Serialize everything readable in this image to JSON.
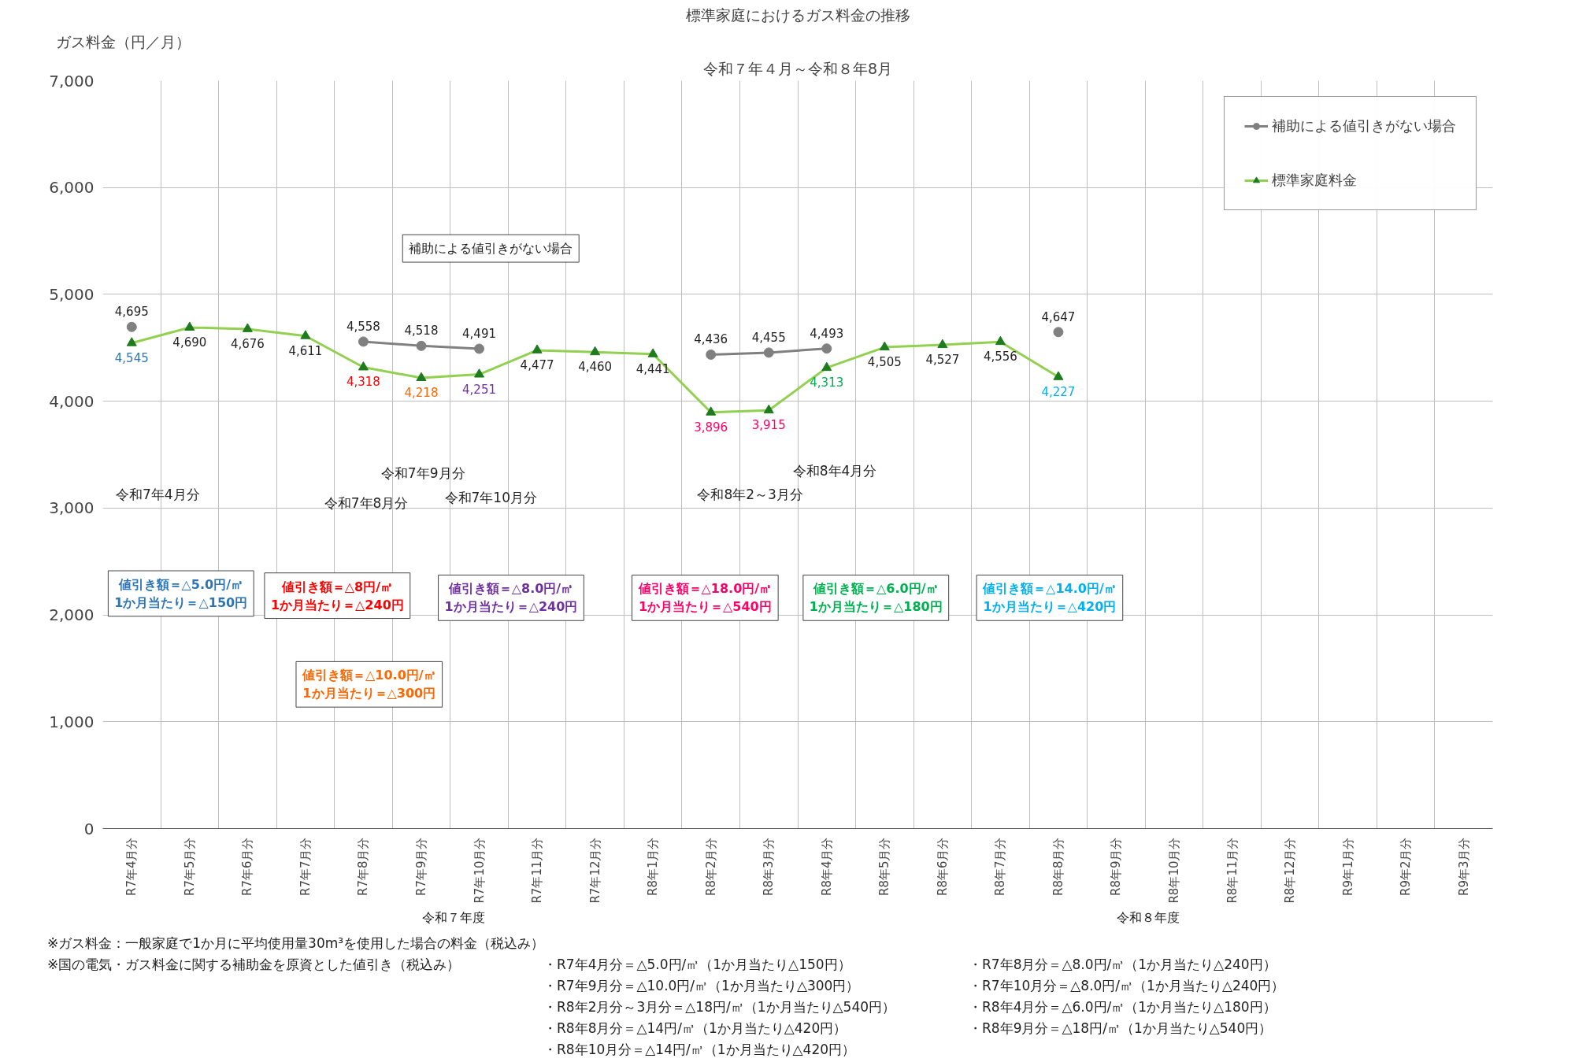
{
  "chart_data": {
    "type": "line",
    "title": "標準家庭におけるガス料金の推移",
    "subtitle": "令和７年４月～令和８年8月",
    "ylabel": "ガス料金（円／月）",
    "categories": [
      "R7年4月分",
      "R7年5月分",
      "R7年6月分",
      "R7年7月分",
      "R7年8月分",
      "R7年9月分",
      "R7年10月分",
      "R7年11月分",
      "R7年12月分",
      "R8年1月分",
      "R8年2月分",
      "R8年3月分",
      "R8年4月分",
      "R8年5月分",
      "R8年6月分",
      "R8年7月分",
      "R8年8月分",
      "R8年9月分",
      "R8年10月分",
      "R8年11月分",
      "R8年12月分",
      "R9年1月分",
      "R9年2月分",
      "R9年3月分"
    ],
    "series": [
      {
        "name": "補助による値引きがない場合",
        "color": "#808080",
        "marker": "circle",
        "values": [
          4695,
          null,
          null,
          null,
          4558,
          4518,
          4491,
          null,
          null,
          null,
          4436,
          4455,
          4493,
          null,
          null,
          null,
          4647,
          null,
          null,
          null,
          null,
          null,
          null,
          null
        ],
        "value_labels": [
          "4,695",
          null,
          null,
          null,
          "4,558",
          "4,518",
          "4,491",
          null,
          null,
          null,
          "4,436",
          "4,455",
          "4,493",
          null,
          null,
          null,
          "4,647",
          null,
          null,
          null,
          null,
          null,
          null,
          null
        ]
      },
      {
        "name": "標準家庭料金",
        "color": "#92d050",
        "marker": "triangle",
        "values": [
          4545,
          4690,
          4676,
          4611,
          4318,
          4218,
          4251,
          4477,
          4460,
          4441,
          3896,
          3915,
          4313,
          4505,
          4527,
          4556,
          4227,
          null,
          null,
          null,
          null,
          null,
          null,
          null
        ],
        "value_labels": [
          "4,545",
          "4,690",
          "4,676",
          "4,611",
          "4,318",
          "4,218",
          "4,251",
          "4,477",
          "4,460",
          "4,441",
          "3,896",
          "3,915",
          "4,313",
          "4,505",
          "4,527",
          "4,556",
          "4,227",
          null,
          null,
          null,
          null,
          null,
          null,
          null
        ]
      }
    ],
    "ylim": [
      0,
      7000
    ],
    "yticks": [
      0,
      {
        "value": 1000,
        "label": "1,000"
      },
      {
        "value": 2000,
        "label": "2,000"
      },
      {
        "value": 3000,
        "label": "3,000"
      },
      {
        "value": 4000,
        "label": "4,000"
      },
      {
        "value": 5000,
        "label": "5,000"
      },
      {
        "value": 6000,
        "label": "6,000"
      },
      {
        "value": 7000,
        "label": "7,000"
      }
    ],
    "grid": true,
    "legend": "top right",
    "line_style": "solid",
    "annotations": [
      "補助による値引きがない場合",
      "令和7年4月分",
      "令和7年8月分",
      "令和7年9月分",
      "令和7年10月分",
      "令和8年2～3月分",
      "令和8年4月分",
      "値引き額＝△5.0円/㎥\n1か月当たり＝△150円",
      "値引き額＝△8円/㎥\n1か月当たり＝△240円",
      "値引き額＝△10.0円/㎥\n1か月当たり＝△300円",
      "値引き額＝△8.0円/㎥\n1か月当たり＝△240円",
      "値引き額＝△18.0円/㎥\n1か月当たり＝△540円",
      "値引き額＝△6.0円/㎥\n1か月当たり＝△180円",
      "値引き額＝△14.0円/㎥\n1か月当たり＝△420円",
      "令和７年度",
      "令和８年度",
      "※ガス料金：一般家庭で1か月に平均使用量30m³を使用した場合の料金（税込み）",
      "※国の電気・ガス料金に関する補助金を原資とした値引き（税込み）",
      "・R7年4月分＝△5.0円/㎥（1か月当たり△150円）",
      "・R7年8月分＝△8.0円/㎥（1か月当たり△240円）",
      "・R7年9月分＝△10.0円/㎥（1か月当たり△300円）",
      "・R7年10月分＝△8.0円/㎥（1か月当たり△240円）",
      "・R8年2月分～3月分＝△18円/㎥（1か月当たり△540円）",
      "・R8年4月分＝△6.0円/㎥（1か月当たり△180円）",
      "・R8年8月分＝△14円/㎥（1か月当たり△420円）",
      "・R8年9月分＝△18円/㎥（1か月当たり△540円）",
      "・R8年10月分＝△14円/㎥（1か月当たり△420円）"
    ]
  }
}
